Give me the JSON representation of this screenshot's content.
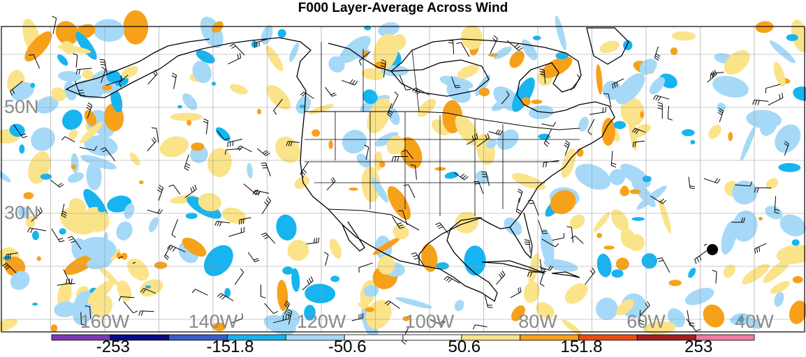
{
  "title": "F000 Layer-Average Across Wind",
  "map": {
    "lat_labels": [
      {
        "label": "50N",
        "lat": 50
      },
      {
        "label": "30N",
        "lat": 30
      }
    ],
    "lon_labels": [
      {
        "label": "160W",
        "lon": -160
      },
      {
        "label": "140W",
        "lon": -140
      },
      {
        "label": "120W",
        "lon": -120
      },
      {
        "label": "100W",
        "lon": -100
      },
      {
        "label": "80W",
        "lon": -80
      },
      {
        "label": "60W",
        "lon": -60
      },
      {
        "label": "40W",
        "lon": -40
      }
    ]
  },
  "colorbar": {
    "colors": [
      "#7d38b7",
      "#0a0a8c",
      "#3c5bc8",
      "#16b4f0",
      "#a6d9f7",
      "#ffffff",
      "#ffffff",
      "#fbe38a",
      "#f7a11a",
      "#ec4a12",
      "#a51e20",
      "#f07ba3"
    ],
    "labels": [
      "-253",
      "-151.8",
      "-50.6",
      "50.6",
      "151.8",
      "253"
    ]
  },
  "colors": {
    "grid": "#9a9a9a",
    "coast": "#000000",
    "barb": "#000000"
  }
}
